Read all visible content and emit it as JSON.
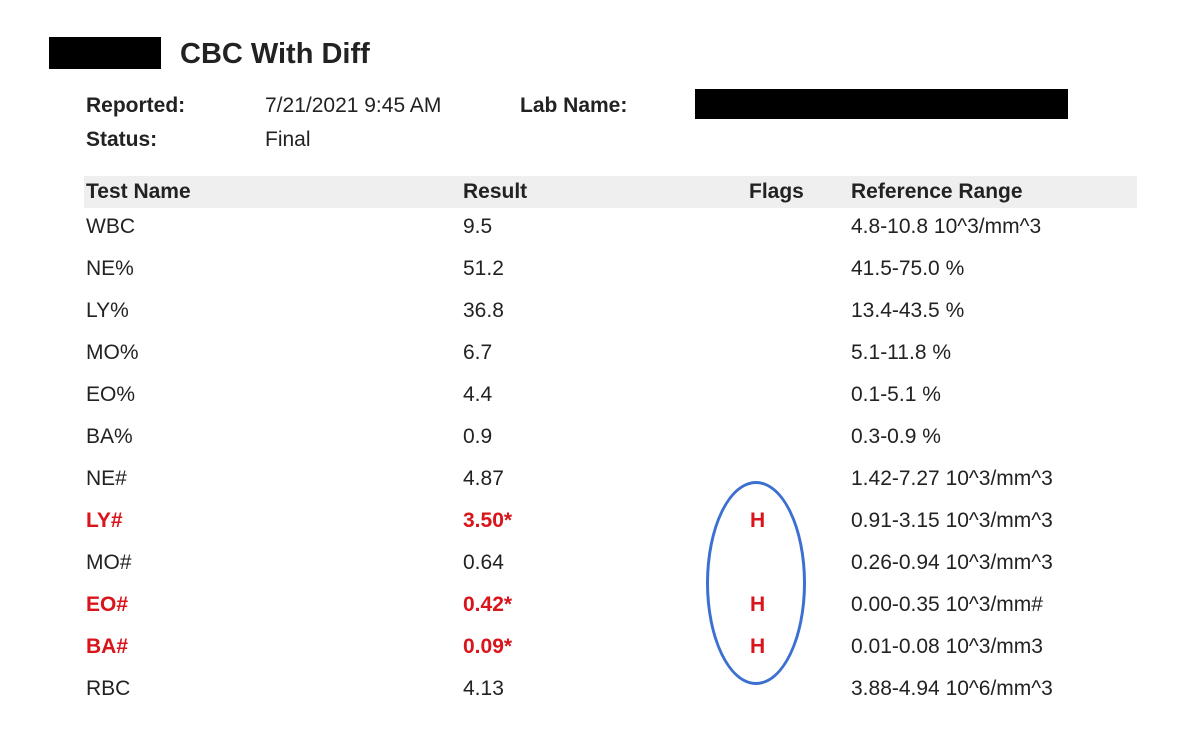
{
  "report": {
    "title": "CBC With Diff",
    "reported_label": "Reported:",
    "reported_value": "7/21/2021 9:45 AM",
    "lab_name_label": "Lab Name:",
    "status_label": "Status:",
    "status_value": "Final"
  },
  "table": {
    "headers": [
      "Test Name",
      "Result",
      "Flags",
      "Reference Range"
    ],
    "rows": [
      {
        "name": "WBC",
        "result": "9.5",
        "flag": "",
        "range": "4.8-10.8 10^3/mm^3",
        "abnormal": false
      },
      {
        "name": "NE%",
        "result": "51.2",
        "flag": "",
        "range": "41.5-75.0 %",
        "abnormal": false
      },
      {
        "name": "LY%",
        "result": "36.8",
        "flag": "",
        "range": "13.4-43.5 %",
        "abnormal": false
      },
      {
        "name": "MO%",
        "result": "6.7",
        "flag": "",
        "range": "5.1-11.8 %",
        "abnormal": false
      },
      {
        "name": "EO%",
        "result": "4.4",
        "flag": "",
        "range": "0.1-5.1 %",
        "abnormal": false
      },
      {
        "name": "BA%",
        "result": "0.9",
        "flag": "",
        "range": "0.3-0.9 %",
        "abnormal": false
      },
      {
        "name": "NE#",
        "result": "4.87",
        "flag": "",
        "range": "1.42-7.27 10^3/mm^3",
        "abnormal": false
      },
      {
        "name": "LY#",
        "result": "3.50*",
        "flag": "H",
        "range": "0.91-3.15 10^3/mm^3",
        "abnormal": true
      },
      {
        "name": "MO#",
        "result": "0.64",
        "flag": "",
        "range": "0.26-0.94 10^3/mm^3",
        "abnormal": false
      },
      {
        "name": "EO#",
        "result": "0.42*",
        "flag": "H",
        "range": "0.00-0.35 10^3/mm#",
        "abnormal": true
      },
      {
        "name": "BA#",
        "result": "0.09*",
        "flag": "H",
        "range": "0.01-0.08 10^3/mm3",
        "abnormal": true
      },
      {
        "name": "RBC",
        "result": "4.13",
        "flag": "",
        "range": "3.88-4.94 10^6/mm^3",
        "abnormal": false
      }
    ]
  },
  "colors": {
    "abnormal": "#d9141b",
    "annotation_circle": "#3b6fd0",
    "header_bg": "#efefef"
  }
}
